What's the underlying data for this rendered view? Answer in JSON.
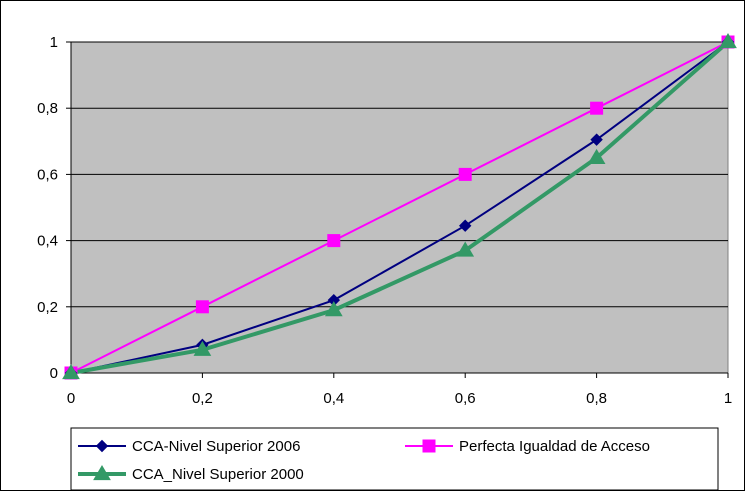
{
  "chart_data": {
    "type": "line",
    "title": "",
    "xlabel": "",
    "ylabel": "",
    "xlim": [
      0,
      1
    ],
    "ylim": [
      0,
      1
    ],
    "x_ticks": [
      "0",
      "0,2",
      "0,4",
      "0,6",
      "0,8",
      "1"
    ],
    "y_ticks": [
      "0",
      "0,2",
      "0,4",
      "0,6",
      "0,8",
      "1"
    ],
    "grid": "horizontal",
    "plot_background": "#c0c0c0",
    "legend_position": "bottom",
    "series": [
      {
        "name": "CCA-Nivel Superior 2006",
        "color": "#000080",
        "marker": "diamond",
        "x": [
          0,
          0.2,
          0.4,
          0.6,
          0.8,
          1
        ],
        "y": [
          0,
          0.085,
          0.22,
          0.445,
          0.705,
          1
        ]
      },
      {
        "name": "Perfecta Igualdad de Acceso",
        "color": "#ff00ff",
        "marker": "square",
        "x": [
          0,
          0.2,
          0.4,
          0.6,
          0.8,
          1
        ],
        "y": [
          0,
          0.2,
          0.4,
          0.6,
          0.8,
          1
        ]
      },
      {
        "name": "CCA_Nivel Superior 2000",
        "color": "#339966",
        "marker": "triangle",
        "x": [
          0,
          0.2,
          0.4,
          0.6,
          0.8,
          1
        ],
        "y": [
          0,
          0.07,
          0.19,
          0.37,
          0.65,
          1
        ]
      }
    ]
  }
}
